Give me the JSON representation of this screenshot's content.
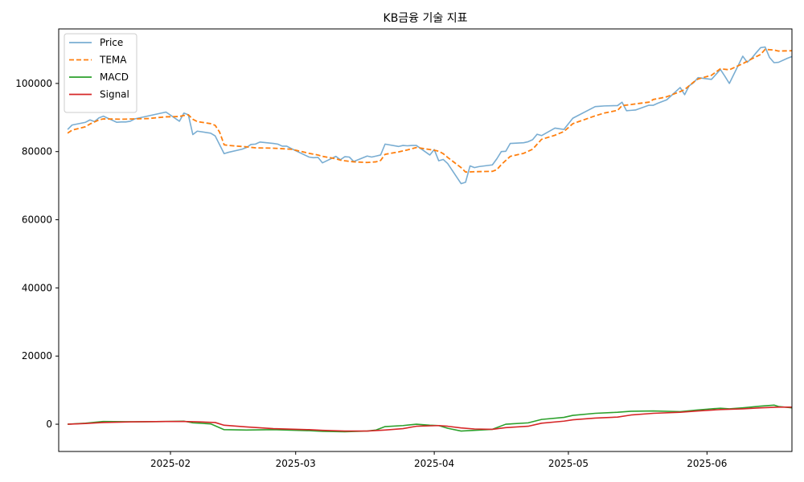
{
  "chart_data": {
    "type": "line",
    "title": "KB금융 기술 지표",
    "xlabel": "",
    "ylabel": "",
    "x_range": [
      "2025-01-07",
      "2025-06-17"
    ],
    "ylim": [
      -8000,
      116000
    ],
    "y_ticks": [
      0,
      20000,
      40000,
      60000,
      80000,
      100000
    ],
    "y_tick_labels": [
      "0",
      "20000",
      "40000",
      "60000",
      "80000",
      "100000"
    ],
    "x_ticks": [
      "2025-02-01",
      "2025-03-01",
      "2025-04-01",
      "2025-05-01",
      "2025-06-01"
    ],
    "x_tick_labels": [
      "2025-02",
      "2025-03",
      "2025-04",
      "2025-05",
      "2025-06"
    ],
    "grid": false,
    "legend_position": "top-left",
    "legend": [
      "Price",
      "TEMA",
      "MACD",
      "Signal"
    ],
    "series": [
      {
        "name": "Price",
        "color": "#1f77b4",
        "dash": "solid",
        "points": [
          [
            "2025-01-09",
            86500
          ],
          [
            "2025-01-10",
            87800
          ],
          [
            "2025-01-13",
            88600
          ],
          [
            "2025-01-14",
            89300
          ],
          [
            "2025-01-15",
            88800
          ],
          [
            "2025-01-16",
            89900
          ],
          [
            "2025-01-17",
            90400
          ],
          [
            "2025-01-20",
            88600
          ],
          [
            "2025-01-21",
            88700
          ],
          [
            "2025-01-22",
            88700
          ],
          [
            "2025-01-23",
            88900
          ],
          [
            "2025-01-24",
            89600
          ],
          [
            "2025-01-31",
            91600
          ],
          [
            "2025-02-03",
            88900
          ],
          [
            "2025-02-04",
            91300
          ],
          [
            "2025-02-05",
            90800
          ],
          [
            "2025-02-06",
            85000
          ],
          [
            "2025-02-07",
            86000
          ],
          [
            "2025-02-10",
            85400
          ],
          [
            "2025-02-11",
            84600
          ],
          [
            "2025-02-12",
            82000
          ],
          [
            "2025-02-13",
            79400
          ],
          [
            "2025-02-14",
            79800
          ],
          [
            "2025-02-17",
            80700
          ],
          [
            "2025-02-18",
            81200
          ],
          [
            "2025-02-19",
            82100
          ],
          [
            "2025-02-20",
            82200
          ],
          [
            "2025-02-21",
            82800
          ],
          [
            "2025-02-24",
            82400
          ],
          [
            "2025-02-25",
            82200
          ],
          [
            "2025-02-26",
            81600
          ],
          [
            "2025-02-27",
            81600
          ],
          [
            "2025-02-28",
            80900
          ],
          [
            "2025-03-04",
            78400
          ],
          [
            "2025-03-05",
            78200
          ],
          [
            "2025-03-06",
            78300
          ],
          [
            "2025-03-07",
            76700
          ],
          [
            "2025-03-10",
            78600
          ],
          [
            "2025-03-11",
            77600
          ],
          [
            "2025-03-12",
            78500
          ],
          [
            "2025-03-13",
            78400
          ],
          [
            "2025-03-14",
            77100
          ],
          [
            "2025-03-17",
            78700
          ],
          [
            "2025-03-18",
            78400
          ],
          [
            "2025-03-19",
            78700
          ],
          [
            "2025-03-20",
            79000
          ],
          [
            "2025-03-21",
            82200
          ],
          [
            "2025-03-24",
            81500
          ],
          [
            "2025-03-25",
            81800
          ],
          [
            "2025-03-26",
            81700
          ],
          [
            "2025-03-27",
            81800
          ],
          [
            "2025-03-28",
            81800
          ],
          [
            "2025-03-31",
            79000
          ],
          [
            "2025-04-01",
            80600
          ],
          [
            "2025-04-02",
            77300
          ],
          [
            "2025-04-03",
            77700
          ],
          [
            "2025-04-04",
            76500
          ],
          [
            "2025-04-07",
            70600
          ],
          [
            "2025-04-08",
            71000
          ],
          [
            "2025-04-09",
            75800
          ],
          [
            "2025-04-10",
            75300
          ],
          [
            "2025-04-11",
            75600
          ],
          [
            "2025-04-14",
            76100
          ],
          [
            "2025-04-15",
            77900
          ],
          [
            "2025-04-16",
            80000
          ],
          [
            "2025-04-17",
            80100
          ],
          [
            "2025-04-18",
            82400
          ],
          [
            "2025-04-21",
            82600
          ],
          [
            "2025-04-22",
            82900
          ],
          [
            "2025-04-23",
            83500
          ],
          [
            "2025-04-24",
            85100
          ],
          [
            "2025-04-25",
            84700
          ],
          [
            "2025-04-28",
            86900
          ],
          [
            "2025-04-29",
            86700
          ],
          [
            "2025-04-30",
            86500
          ],
          [
            "2025-05-02",
            89800
          ],
          [
            "2025-05-07",
            93200
          ],
          [
            "2025-05-08",
            93300
          ],
          [
            "2025-05-09",
            93400
          ],
          [
            "2025-05-12",
            93500
          ],
          [
            "2025-05-13",
            94500
          ],
          [
            "2025-05-14",
            92000
          ],
          [
            "2025-05-15",
            92100
          ],
          [
            "2025-05-16",
            92200
          ],
          [
            "2025-05-19",
            93600
          ],
          [
            "2025-05-20",
            93600
          ],
          [
            "2025-05-21",
            94200
          ],
          [
            "2025-05-22",
            94700
          ],
          [
            "2025-05-23",
            95200
          ],
          [
            "2025-05-26",
            98800
          ],
          [
            "2025-05-27",
            96700
          ],
          [
            "2025-05-28",
            99300
          ],
          [
            "2025-05-29",
            100200
          ],
          [
            "2025-05-30",
            101700
          ],
          [
            "2025-06-02",
            101200
          ],
          [
            "2025-06-04",
            104100
          ],
          [
            "2025-06-05",
            102100
          ],
          [
            "2025-06-06",
            100000
          ],
          [
            "2025-06-09",
            108000
          ],
          [
            "2025-06-10",
            106200
          ],
          [
            "2025-06-11",
            107400
          ],
          [
            "2025-06-12",
            109000
          ],
          [
            "2025-06-13",
            110500
          ],
          [
            "2025-06-14",
            110700
          ],
          [
            "2025-06-15",
            107600
          ],
          [
            "2025-06-16",
            106100
          ],
          [
            "2025-06-17",
            106200
          ],
          [
            "2025-06-19",
            107400
          ],
          [
            "2025-06-20",
            107900
          ]
        ]
      },
      {
        "name": "TEMA",
        "color": "#ff7f0e",
        "dash": "dashed",
        "points": [
          [
            "2025-01-09",
            85400
          ],
          [
            "2025-01-10",
            86300
          ],
          [
            "2025-01-13",
            87300
          ],
          [
            "2025-01-14",
            88100
          ],
          [
            "2025-01-16",
            89300
          ],
          [
            "2025-01-17",
            89600
          ],
          [
            "2025-01-21",
            89500
          ],
          [
            "2025-01-24",
            89600
          ],
          [
            "2025-01-27",
            89700
          ],
          [
            "2025-01-31",
            90200
          ],
          [
            "2025-02-03",
            90300
          ],
          [
            "2025-02-04",
            90600
          ],
          [
            "2025-02-05",
            90800
          ],
          [
            "2025-02-06",
            89500
          ],
          [
            "2025-02-07",
            88800
          ],
          [
            "2025-02-10",
            88200
          ],
          [
            "2025-02-11",
            87700
          ],
          [
            "2025-02-12",
            85700
          ],
          [
            "2025-02-13",
            82000
          ],
          [
            "2025-02-14",
            81800
          ],
          [
            "2025-02-18",
            81400
          ],
          [
            "2025-02-20",
            81100
          ],
          [
            "2025-02-24",
            81000
          ],
          [
            "2025-02-28",
            80700
          ],
          [
            "2025-03-04",
            79500
          ],
          [
            "2025-03-06",
            79000
          ],
          [
            "2025-03-07",
            78600
          ],
          [
            "2025-03-10",
            77900
          ],
          [
            "2025-03-11",
            77500
          ],
          [
            "2025-03-12",
            77300
          ],
          [
            "2025-03-14",
            77000
          ],
          [
            "2025-03-17",
            76800
          ],
          [
            "2025-03-19",
            77000
          ],
          [
            "2025-03-20",
            77400
          ],
          [
            "2025-03-21",
            79200
          ],
          [
            "2025-03-24",
            79900
          ],
          [
            "2025-03-26",
            80500
          ],
          [
            "2025-03-28",
            81200
          ],
          [
            "2025-03-31",
            80600
          ],
          [
            "2025-04-01",
            80400
          ],
          [
            "2025-04-02",
            80100
          ],
          [
            "2025-04-03",
            79400
          ],
          [
            "2025-04-04",
            78300
          ],
          [
            "2025-04-07",
            75300
          ],
          [
            "2025-04-08",
            74000
          ],
          [
            "2025-04-10",
            74100
          ],
          [
            "2025-04-14",
            74200
          ],
          [
            "2025-04-15",
            74700
          ],
          [
            "2025-04-16",
            76200
          ],
          [
            "2025-04-18",
            78600
          ],
          [
            "2025-04-21",
            79500
          ],
          [
            "2025-04-23",
            80700
          ],
          [
            "2025-04-25",
            83600
          ],
          [
            "2025-04-28",
            84800
          ],
          [
            "2025-04-30",
            85900
          ],
          [
            "2025-05-02",
            88200
          ],
          [
            "2025-05-07",
            90500
          ],
          [
            "2025-05-09",
            91300
          ],
          [
            "2025-05-12",
            92100
          ],
          [
            "2025-05-13",
            93500
          ],
          [
            "2025-05-15",
            93800
          ],
          [
            "2025-05-16",
            94000
          ],
          [
            "2025-05-19",
            94500
          ],
          [
            "2025-05-20",
            95300
          ],
          [
            "2025-05-22",
            95800
          ],
          [
            "2025-05-23",
            96100
          ],
          [
            "2025-05-26",
            97600
          ],
          [
            "2025-05-27",
            98200
          ],
          [
            "2025-05-29",
            100400
          ],
          [
            "2025-05-30",
            101300
          ],
          [
            "2025-06-02",
            102400
          ],
          [
            "2025-06-04",
            104300
          ],
          [
            "2025-06-06",
            104000
          ],
          [
            "2025-06-09",
            105800
          ],
          [
            "2025-06-11",
            107200
          ],
          [
            "2025-06-13",
            108500
          ],
          [
            "2025-06-14",
            110000
          ],
          [
            "2025-06-16",
            109800
          ],
          [
            "2025-06-17",
            109500
          ],
          [
            "2025-06-20",
            109600
          ]
        ]
      },
      {
        "name": "MACD",
        "color": "#2ca02c",
        "dash": "solid",
        "points": [
          [
            "2025-01-09",
            0
          ],
          [
            "2025-01-13",
            300
          ],
          [
            "2025-01-17",
            800
          ],
          [
            "2025-01-24",
            700
          ],
          [
            "2025-01-31",
            800
          ],
          [
            "2025-02-04",
            900
          ],
          [
            "2025-02-06",
            400
          ],
          [
            "2025-02-10",
            100
          ],
          [
            "2025-02-13",
            -1600
          ],
          [
            "2025-02-18",
            -1700
          ],
          [
            "2025-02-24",
            -1600
          ],
          [
            "2025-03-04",
            -1900
          ],
          [
            "2025-03-07",
            -2100
          ],
          [
            "2025-03-12",
            -2200
          ],
          [
            "2025-03-17",
            -2000
          ],
          [
            "2025-03-19",
            -1700
          ],
          [
            "2025-03-21",
            -700
          ],
          [
            "2025-03-25",
            -400
          ],
          [
            "2025-03-28",
            0
          ],
          [
            "2025-03-31",
            -300
          ],
          [
            "2025-04-02",
            -400
          ],
          [
            "2025-04-04",
            -1200
          ],
          [
            "2025-04-07",
            -2000
          ],
          [
            "2025-04-10",
            -1800
          ],
          [
            "2025-04-14",
            -1500
          ],
          [
            "2025-04-17",
            0
          ],
          [
            "2025-04-22",
            400
          ],
          [
            "2025-04-25",
            1400
          ],
          [
            "2025-04-30",
            2000
          ],
          [
            "2025-05-02",
            2600
          ],
          [
            "2025-05-07",
            3200
          ],
          [
            "2025-05-12",
            3500
          ],
          [
            "2025-05-15",
            3800
          ],
          [
            "2025-05-20",
            3900
          ],
          [
            "2025-05-26",
            3700
          ],
          [
            "2025-05-30",
            4200
          ],
          [
            "2025-06-04",
            4700
          ],
          [
            "2025-06-06",
            4500
          ],
          [
            "2025-06-09",
            4800
          ],
          [
            "2025-06-13",
            5300
          ],
          [
            "2025-06-16",
            5600
          ],
          [
            "2025-06-17",
            5200
          ],
          [
            "2025-06-20",
            4800
          ]
        ]
      },
      {
        "name": "Signal",
        "color": "#d62728",
        "dash": "solid",
        "points": [
          [
            "2025-01-09",
            0
          ],
          [
            "2025-01-13",
            200
          ],
          [
            "2025-01-17",
            500
          ],
          [
            "2025-01-24",
            700
          ],
          [
            "2025-01-31",
            800
          ],
          [
            "2025-02-04",
            800
          ],
          [
            "2025-02-07",
            700
          ],
          [
            "2025-02-11",
            500
          ],
          [
            "2025-02-13",
            -300
          ],
          [
            "2025-02-18",
            -800
          ],
          [
            "2025-02-24",
            -1300
          ],
          [
            "2025-03-04",
            -1600
          ],
          [
            "2025-03-07",
            -1800
          ],
          [
            "2025-03-12",
            -2000
          ],
          [
            "2025-03-17",
            -2000
          ],
          [
            "2025-03-21",
            -1700
          ],
          [
            "2025-03-25",
            -1300
          ],
          [
            "2025-03-28",
            -600
          ],
          [
            "2025-04-02",
            -400
          ],
          [
            "2025-04-04",
            -600
          ],
          [
            "2025-04-07",
            -1100
          ],
          [
            "2025-04-10",
            -1400
          ],
          [
            "2025-04-14",
            -1500
          ],
          [
            "2025-04-17",
            -1000
          ],
          [
            "2025-04-22",
            -600
          ],
          [
            "2025-04-25",
            300
          ],
          [
            "2025-04-30",
            900
          ],
          [
            "2025-05-02",
            1300
          ],
          [
            "2025-05-07",
            1800
          ],
          [
            "2025-05-12",
            2100
          ],
          [
            "2025-05-15",
            2700
          ],
          [
            "2025-05-20",
            3200
          ],
          [
            "2025-05-26",
            3500
          ],
          [
            "2025-05-30",
            3900
          ],
          [
            "2025-06-04",
            4300
          ],
          [
            "2025-06-09",
            4500
          ],
          [
            "2025-06-13",
            4800
          ],
          [
            "2025-06-17",
            5000
          ],
          [
            "2025-06-20",
            5000
          ]
        ]
      }
    ]
  }
}
